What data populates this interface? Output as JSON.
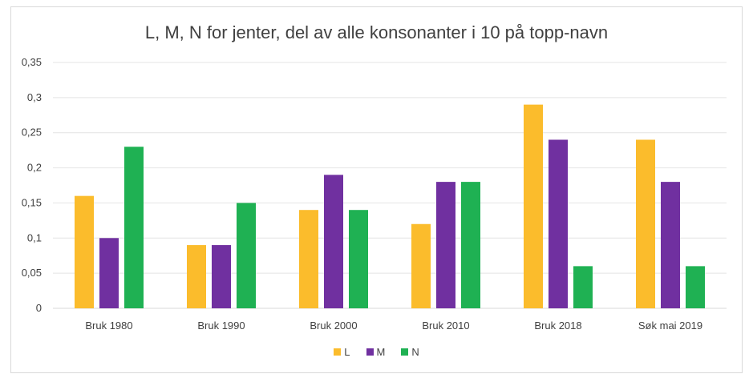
{
  "chart_data": {
    "type": "bar",
    "title": "L, M, N for jenter, del av alle konsonanter i 10 på topp-navn",
    "xlabel": "",
    "ylabel": "",
    "categories": [
      "Bruk 1980",
      "Bruk 1990",
      "Bruk 2000",
      "Bruk 2010",
      "Bruk 2018",
      "Søk mai 2019"
    ],
    "series": [
      {
        "name": "L",
        "color": "#fbbc2c",
        "values": [
          0.16,
          0.09,
          0.14,
          0.12,
          0.29,
          0.24
        ]
      },
      {
        "name": "M",
        "color": "#7030a0",
        "values": [
          0.1,
          0.09,
          0.19,
          0.18,
          0.24,
          0.18
        ]
      },
      {
        "name": "N",
        "color": "#1fb153",
        "values": [
          0.23,
          0.15,
          0.14,
          0.18,
          0.06,
          0.06
        ]
      }
    ],
    "ylim": [
      0,
      0.35
    ],
    "yticks": [
      0,
      0.05,
      0.1,
      0.15,
      0.2,
      0.25,
      0.3,
      0.35
    ],
    "ytick_labels": [
      "0",
      "0,05",
      "0,1",
      "0,15",
      "0,2",
      "0,25",
      "0,3",
      "0,35"
    ],
    "grid": true,
    "legend_position": "bottom"
  }
}
